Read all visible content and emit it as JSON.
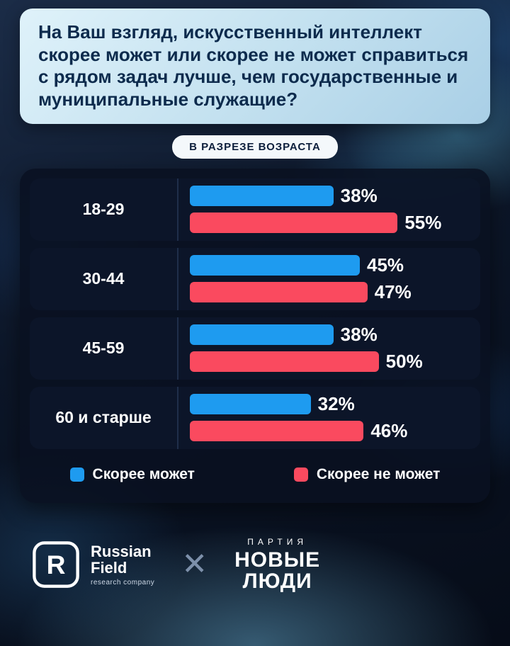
{
  "question": {
    "text": "На Ваш взгляд, искусственный интеллект скорее может или скорее не может справиться с рядом задач лучше, чем государственные и муниципальные служащие?"
  },
  "badge": {
    "label": "В РАЗРЕЗЕ ВОЗРАСТА"
  },
  "chart_data": {
    "type": "bar",
    "orientation": "horizontal",
    "title": "",
    "categories": [
      "18-29",
      "30-44",
      "45-59",
      "60 и старше"
    ],
    "series": [
      {
        "name": "Скорее может",
        "color": "#1E9BF0",
        "values": [
          38,
          45,
          38,
          32
        ]
      },
      {
        "name": "Скорее не может",
        "color": "#FA4A5F",
        "values": [
          55,
          47,
          50,
          46
        ]
      }
    ],
    "value_suffix": "%",
    "xlim": [
      0,
      75
    ],
    "grid": false,
    "legend_position": "bottom"
  },
  "footer": {
    "rf_name_line1": "Russian",
    "rf_name_line2": "Field",
    "rf_sub": "research company",
    "rf_icon_letter": "R",
    "separator": "✕",
    "party_top": "ПАРТИЯ",
    "party_line1": "НОВЫЕ",
    "party_line2": "ЛЮДИ"
  }
}
